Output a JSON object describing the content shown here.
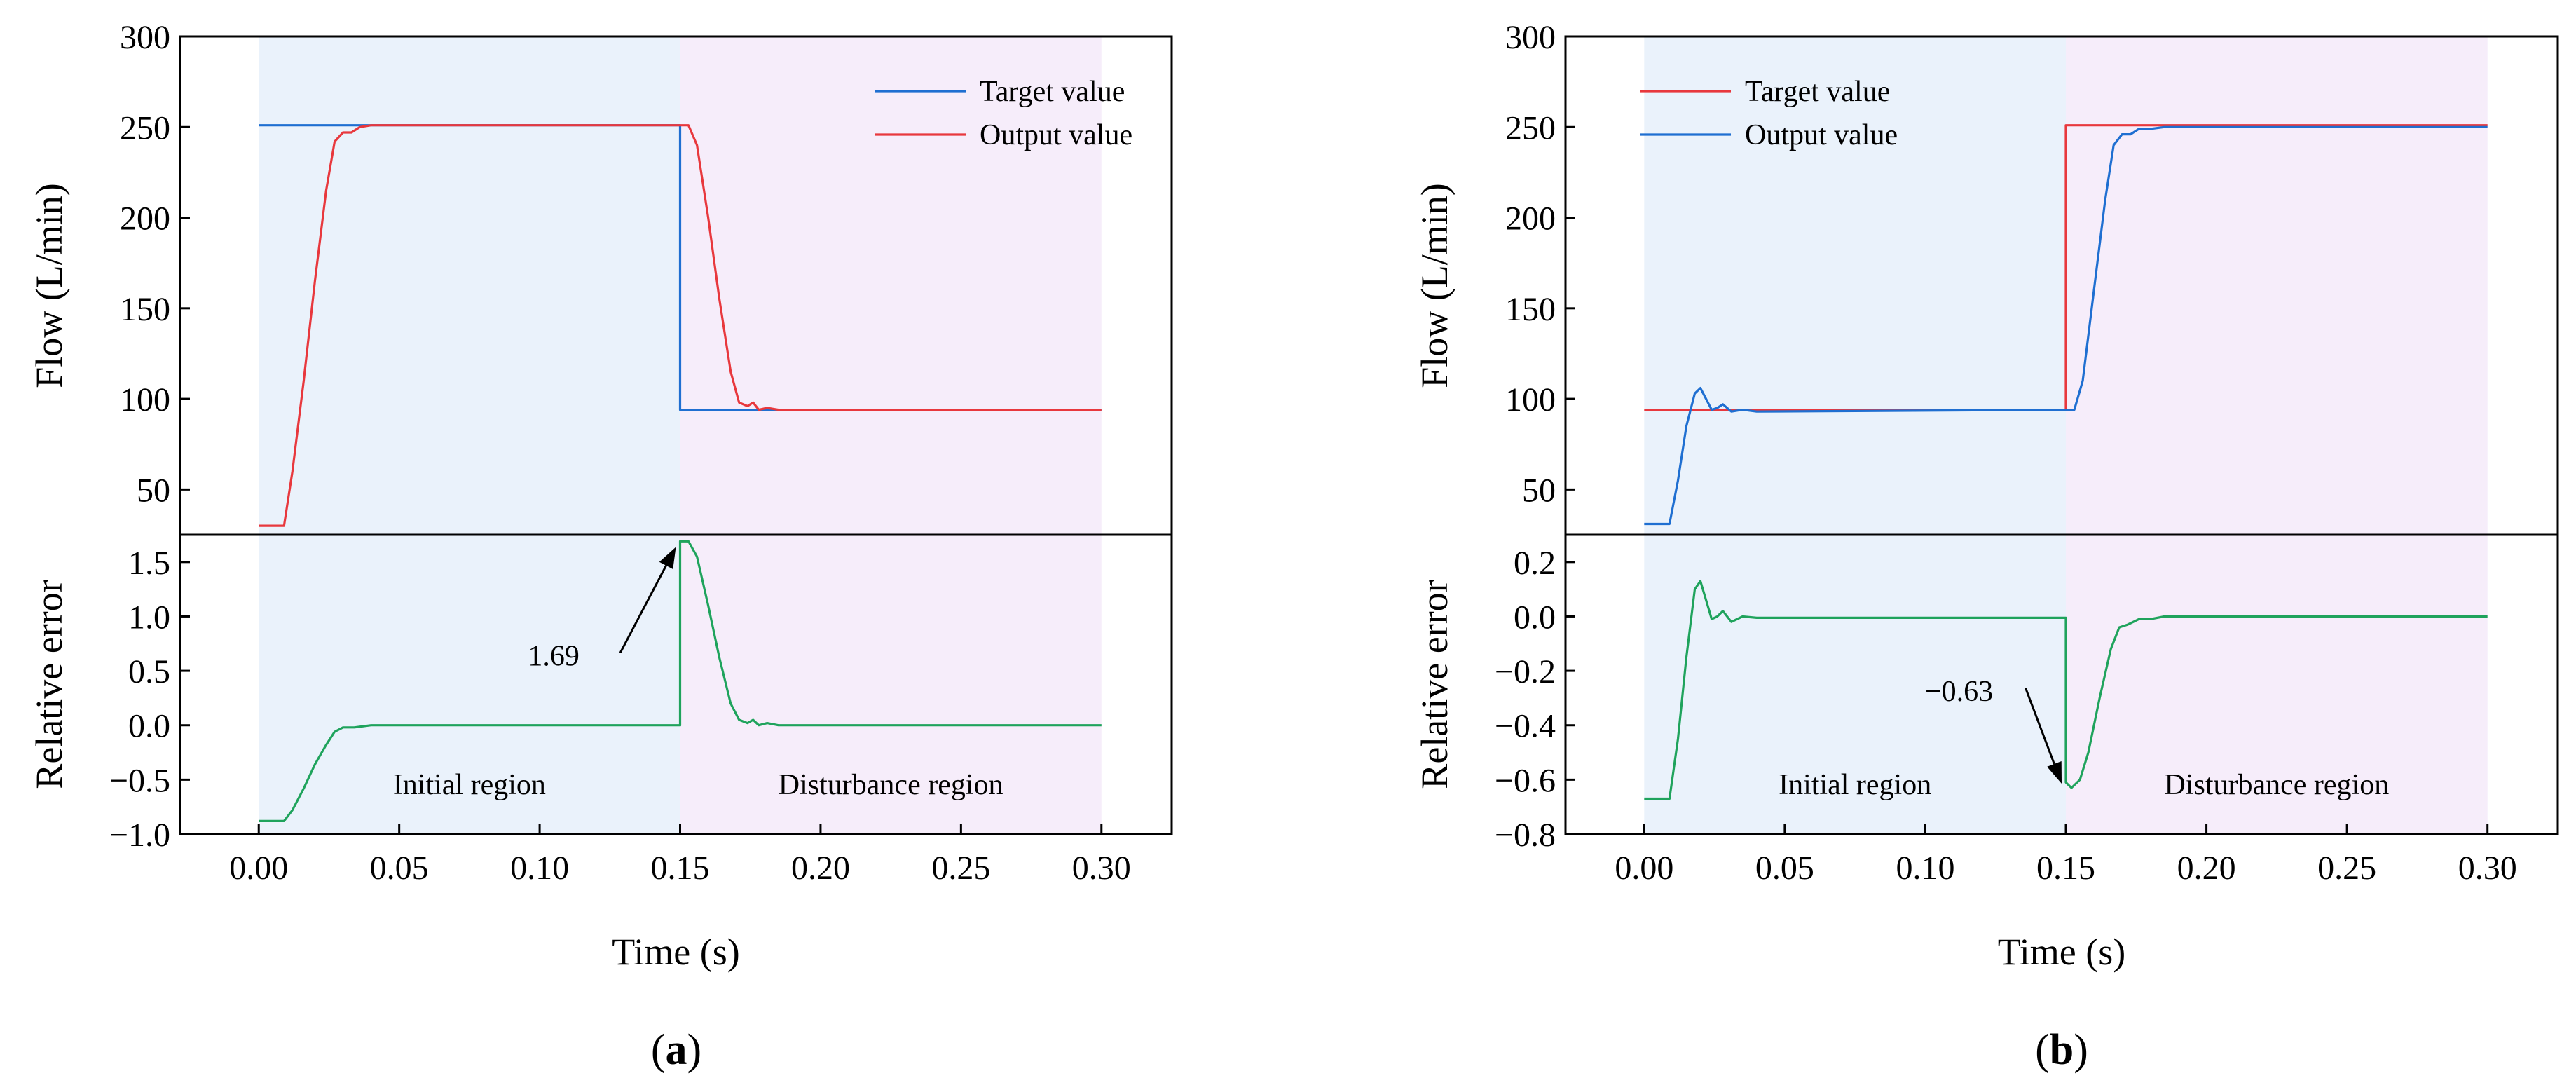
{
  "figure": {
    "caption_a": "a",
    "caption_b": "b"
  },
  "chart_data": [
    {
      "panel": "a",
      "type": "line",
      "xlabel": "Time (s)",
      "x_ticks": [
        "0.00",
        "0.05",
        "0.10",
        "0.15",
        "0.20",
        "0.25",
        "0.30"
      ],
      "xlim": [
        -0.028,
        0.325
      ],
      "regions": [
        {
          "label": "Initial region",
          "x": [
            0,
            0.15
          ],
          "color": "#EAF2FB"
        },
        {
          "label": "Disturbance region",
          "x": [
            0.15,
            0.3
          ],
          "color": "#F6EDFA"
        }
      ],
      "top": {
        "ylabel": "Flow (L/min)",
        "ylim": [
          25,
          300
        ],
        "y_ticks": [
          50,
          100,
          150,
          200,
          250,
          300
        ],
        "legend": [
          {
            "name": "Target value",
            "color": "#1F6FD1"
          },
          {
            "name": "Output value",
            "color": "#E8383D"
          }
        ],
        "series": [
          {
            "name": "Target value",
            "color": "#1F6FD1",
            "points": [
              [
                0,
                251
              ],
              [
                0.15,
                251
              ],
              [
                0.15,
                94
              ],
              [
                0.3,
                94
              ]
            ]
          },
          {
            "name": "Output value",
            "color": "#E8383D",
            "points": [
              [
                0,
                30
              ],
              [
                0.009,
                30
              ],
              [
                0.012,
                60
              ],
              [
                0.016,
                110
              ],
              [
                0.02,
                165
              ],
              [
                0.024,
                215
              ],
              [
                0.027,
                242
              ],
              [
                0.03,
                247
              ],
              [
                0.033,
                247
              ],
              [
                0.036,
                250
              ],
              [
                0.04,
                251
              ],
              [
                0.15,
                251
              ],
              [
                0.153,
                251
              ],
              [
                0.156,
                240
              ],
              [
                0.16,
                200
              ],
              [
                0.164,
                155
              ],
              [
                0.168,
                115
              ],
              [
                0.171,
                98
              ],
              [
                0.174,
                96
              ],
              [
                0.176,
                98
              ],
              [
                0.178,
                94
              ],
              [
                0.181,
                95
              ],
              [
                0.185,
                94
              ],
              [
                0.3,
                94
              ]
            ]
          }
        ]
      },
      "bottom": {
        "ylabel": "Relative error",
        "ylim": [
          -1.0,
          1.75
        ],
        "y_ticks": [
          "−1.0",
          "−0.5",
          "0.0",
          "0.5",
          "1.0",
          "1.5"
        ],
        "y_tick_values": [
          -1.0,
          -0.5,
          0.0,
          0.5,
          1.0,
          1.5
        ],
        "series": [
          {
            "name": "Relative error",
            "color": "#1FA35C",
            "points": [
              [
                0,
                -0.88
              ],
              [
                0.009,
                -0.88
              ],
              [
                0.012,
                -0.78
              ],
              [
                0.016,
                -0.58
              ],
              [
                0.02,
                -0.36
              ],
              [
                0.024,
                -0.18
              ],
              [
                0.027,
                -0.06
              ],
              [
                0.03,
                -0.02
              ],
              [
                0.034,
                -0.02
              ],
              [
                0.04,
                0
              ],
              [
                0.15,
                0
              ],
              [
                0.15,
                1.69
              ],
              [
                0.153,
                1.69
              ],
              [
                0.156,
                1.55
              ],
              [
                0.16,
                1.1
              ],
              [
                0.164,
                0.62
              ],
              [
                0.168,
                0.2
              ],
              [
                0.171,
                0.05
              ],
              [
                0.174,
                0.02
              ],
              [
                0.176,
                0.05
              ],
              [
                0.178,
                0.0
              ],
              [
                0.181,
                0.02
              ],
              [
                0.185,
                0
              ],
              [
                0.3,
                0
              ]
            ]
          }
        ],
        "annotation": {
          "text": "1.69",
          "x": 0.15,
          "y": 1.69,
          "text_x": 0.105,
          "text_y": 0.55
        }
      }
    },
    {
      "panel": "b",
      "type": "line",
      "xlabel": "Time (s)",
      "x_ticks": [
        "0.00",
        "0.05",
        "0.10",
        "0.15",
        "0.20",
        "0.25",
        "0.30"
      ],
      "xlim": [
        -0.028,
        0.325
      ],
      "regions": [
        {
          "label": "Initial region",
          "x": [
            0,
            0.15
          ],
          "color": "#EAF2FB"
        },
        {
          "label": "Disturbance region",
          "x": [
            0.15,
            0.3
          ],
          "color": "#F6EDFA"
        }
      ],
      "top": {
        "ylabel": "Flow (L/min)",
        "ylim": [
          25,
          300
        ],
        "y_ticks": [
          50,
          100,
          150,
          200,
          250,
          300
        ],
        "legend": [
          {
            "name": "Target value",
            "color": "#E8383D"
          },
          {
            "name": "Output value",
            "color": "#1F6FD1"
          }
        ],
        "series": [
          {
            "name": "Target value",
            "color": "#E8383D",
            "points": [
              [
                0,
                94
              ],
              [
                0.15,
                94
              ],
              [
                0.15,
                251
              ],
              [
                0.3,
                251
              ]
            ]
          },
          {
            "name": "Output value",
            "color": "#1F6FD1",
            "points": [
              [
                0,
                31
              ],
              [
                0.009,
                31
              ],
              [
                0.012,
                55
              ],
              [
                0.015,
                85
              ],
              [
                0.018,
                103
              ],
              [
                0.02,
                106
              ],
              [
                0.022,
                100
              ],
              [
                0.024,
                94
              ],
              [
                0.026,
                95
              ],
              [
                0.028,
                97
              ],
              [
                0.031,
                93
              ],
              [
                0.035,
                94
              ],
              [
                0.04,
                93
              ],
              [
                0.15,
                94
              ],
              [
                0.153,
                94
              ],
              [
                0.156,
                110
              ],
              [
                0.16,
                160
              ],
              [
                0.164,
                210
              ],
              [
                0.167,
                240
              ],
              [
                0.17,
                246
              ],
              [
                0.173,
                246
              ],
              [
                0.176,
                249
              ],
              [
                0.18,
                249
              ],
              [
                0.185,
                250
              ],
              [
                0.3,
                250
              ]
            ]
          }
        ]
      },
      "bottom": {
        "ylabel": "Relative error",
        "ylim": [
          -0.8,
          0.3
        ],
        "y_ticks": [
          "−0.8",
          "−0.6",
          "−0.4",
          "−0.2",
          "0.0",
          "0.2"
        ],
        "y_tick_values": [
          -0.8,
          -0.6,
          -0.4,
          -0.2,
          0.0,
          0.2
        ],
        "series": [
          {
            "name": "Relative error",
            "color": "#1FA35C",
            "points": [
              [
                0,
                -0.67
              ],
              [
                0.009,
                -0.67
              ],
              [
                0.012,
                -0.45
              ],
              [
                0.015,
                -0.15
              ],
              [
                0.018,
                0.1
              ],
              [
                0.02,
                0.13
              ],
              [
                0.022,
                0.06
              ],
              [
                0.024,
                -0.01
              ],
              [
                0.026,
                0.0
              ],
              [
                0.028,
                0.02
              ],
              [
                0.031,
                -0.02
              ],
              [
                0.035,
                0.0
              ],
              [
                0.04,
                -0.005
              ],
              [
                0.15,
                -0.005
              ],
              [
                0.15,
                -0.61
              ],
              [
                0.152,
                -0.63
              ],
              [
                0.155,
                -0.6
              ],
              [
                0.158,
                -0.5
              ],
              [
                0.162,
                -0.3
              ],
              [
                0.166,
                -0.12
              ],
              [
                0.169,
                -0.04
              ],
              [
                0.172,
                -0.03
              ],
              [
                0.176,
                -0.01
              ],
              [
                0.18,
                -0.01
              ],
              [
                0.185,
                0
              ],
              [
                0.3,
                0
              ]
            ]
          }
        ],
        "annotation": {
          "text": "−0.63",
          "x": 0.15,
          "y": -0.63,
          "text_x": 0.112,
          "text_y": -0.31
        }
      }
    }
  ]
}
